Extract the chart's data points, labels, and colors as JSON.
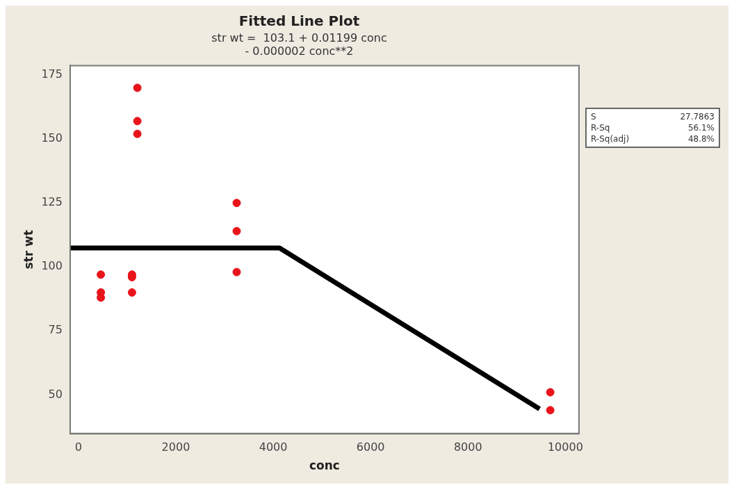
{
  "chart_data": {
    "type": "scatter",
    "title": "Fitted Line Plot",
    "subtitle": "str wt =  103.1 + 0.01199 conc\n- 0.000002 conc**2",
    "xlabel": "conc",
    "ylabel": "str wt",
    "xlim": [
      -170,
      10280
    ],
    "xticks": [
      0,
      2000,
      4000,
      6000,
      8000,
      10000
    ],
    "ylim": [
      34.8,
      178.7
    ],
    "yticks": [
      50,
      75,
      100,
      125,
      150,
      175
    ],
    "grid": false,
    "legend": false,
    "series": [
      {
        "type": "scatter",
        "marker": "circle",
        "color": "#e8141a",
        "x": [
          460,
          460,
          460,
          1100,
          1100,
          1100,
          1210,
          1210,
          1210,
          3250,
          3250,
          3250,
          9690,
          9690
        ],
        "values": [
          97,
          90,
          88,
          97,
          96,
          90,
          170,
          157,
          152,
          125,
          114,
          98,
          51,
          44
        ]
      },
      {
        "type": "line",
        "color": "#000000",
        "line_style": "solid",
        "x": [
          -170,
          4130,
          9470
        ],
        "values": [
          107.4,
          107.4,
          44.5
        ]
      }
    ],
    "annotations": [
      "S",
      "27.7863",
      "R-Sq",
      "56.1%",
      "R-Sq(adj)",
      "48.8%"
    ]
  }
}
